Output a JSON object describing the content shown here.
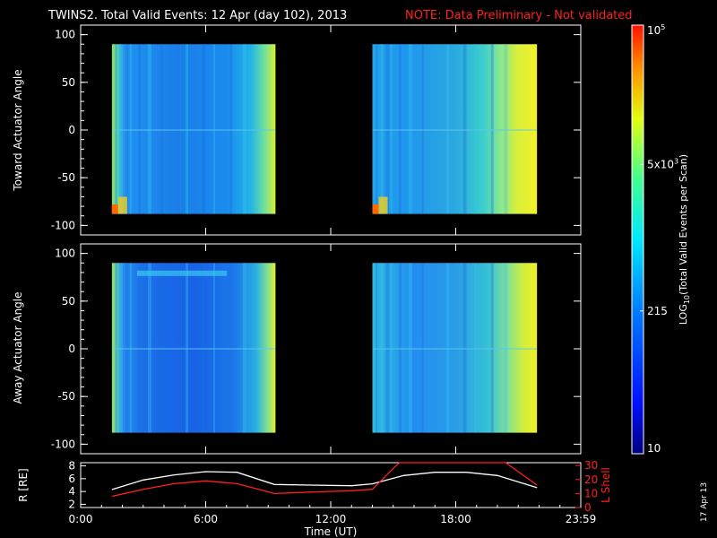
{
  "header": {
    "title": "TWINS2. Total Valid Events: 12 Apr (day 102), 2013",
    "note": "NOTE: Data Preliminary - Not validated",
    "note_color": "#ff2020",
    "date_stamp": "17 Apr 13"
  },
  "chart_data": [
    {
      "type": "heatmap",
      "ylabel": "Toward Actuator Angle",
      "ylim": [
        -110,
        110
      ],
      "yticks": [
        "100",
        "50",
        "0",
        "-50",
        "-100"
      ],
      "xlim": [
        0,
        24
      ],
      "segments": [
        {
          "x_start": 1.5,
          "x_end": 9.35,
          "y_min": -88,
          "y_max": 90
        },
        {
          "x_start": 14.0,
          "x_end": 21.9,
          "y_min": -88,
          "y_max": 90
        }
      ]
    },
    {
      "type": "heatmap",
      "ylabel": "Away Actuator Angle",
      "ylim": [
        -110,
        110
      ],
      "yticks": [
        "100",
        "50",
        "0",
        "-50",
        "-100"
      ],
      "xlim": [
        0,
        24
      ],
      "segments": [
        {
          "x_start": 1.5,
          "x_end": 9.35,
          "y_min": -88,
          "y_max": 90
        },
        {
          "x_start": 14.0,
          "x_end": 21.9,
          "y_min": -88,
          "y_max": 90
        }
      ]
    },
    {
      "type": "line",
      "ylabel": "R [RE]",
      "ylabel_right": "L Shell",
      "yticks": [
        "8",
        "6",
        "4",
        "2"
      ],
      "yticks_right": [
        "30",
        "20",
        "10",
        "0"
      ],
      "ylim": [
        1.5,
        8.5
      ],
      "ylim_right": [
        0,
        32
      ],
      "xlabel": "Time (UT)",
      "xticks": [
        "0:00",
        "6:00",
        "12:00",
        "18:00",
        "23:59"
      ],
      "xlim": [
        0,
        24
      ],
      "series": [
        {
          "axis": "left",
          "color": "#ffffff",
          "x": [
            1.5,
            3,
            4.5,
            6,
            7.5,
            9.3,
            11,
            13,
            14,
            15.5,
            17,
            18.5,
            20,
            21.9
          ],
          "y": [
            4.3,
            5.8,
            6.6,
            7.1,
            7.0,
            5.1,
            5.0,
            4.9,
            5.2,
            6.5,
            7.0,
            7.0,
            6.5,
            4.6
          ]
        },
        {
          "axis": "right",
          "color": "#ff2020",
          "x": [
            1.5,
            3,
            4.5,
            6,
            7.5,
            9.3,
            11,
            13,
            14,
            15.0,
            15.3,
            20.4,
            21.9
          ],
          "y": [
            8,
            13,
            17,
            19,
            17,
            10,
            11,
            12,
            13,
            28,
            33,
            33,
            16
          ]
        }
      ]
    }
  ],
  "colorbar": {
    "label": "LOG10(Total Valid Events per Scan)",
    "ticks": [
      "10",
      "215",
      "5x103",
      "105"
    ],
    "tick_values": [
      10,
      215,
      5000,
      100000
    ],
    "range": [
      10,
      100000
    ]
  }
}
